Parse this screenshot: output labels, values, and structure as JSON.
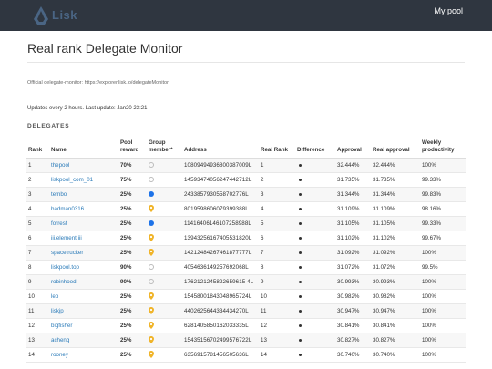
{
  "header": {
    "logo_text": "Lisk",
    "my_pool_label": "My pool"
  },
  "page": {
    "title": "Real rank Delegate Monitor",
    "official_text": "Official delegate-monitor: https://explorer.lisk.io/delegateMonitor",
    "updates_text": "Updates every 2 hours. Last update: Jan20 23:21",
    "section_label": "DELEGATES"
  },
  "table": {
    "headers": {
      "rank": "Rank",
      "name": "Name",
      "pool_reward": "Pool reward",
      "group_member": "Group member*",
      "address": "Address",
      "real_rank": "Real Rank",
      "difference": "Difference",
      "approval": "Approval",
      "real_approval": "Real approval",
      "weekly": "Weekly productivity"
    },
    "rows": [
      {
        "rank": "1",
        "name": "thepool",
        "reward": "70%",
        "member": "empty",
        "address": "10809494936800387009L",
        "real_rank": "1",
        "approval": "32.444%",
        "real_approval": "32.444%",
        "weekly": "100%"
      },
      {
        "rank": "2",
        "name": "liskpool_com_01",
        "reward": "75%",
        "member": "empty",
        "address": "14593474056247442712L",
        "real_rank": "2",
        "approval": "31.735%",
        "real_approval": "31.735%",
        "weekly": "99.33%"
      },
      {
        "rank": "3",
        "name": "tembo",
        "reward": "25%",
        "member": "blue",
        "address": "2433857930558702776L",
        "real_rank": "3",
        "approval": "31.344%",
        "real_approval": "31.344%",
        "weekly": "99.83%"
      },
      {
        "rank": "4",
        "name": "badman0316",
        "reward": "25%",
        "member": "pin",
        "address": "8019598606079399388L",
        "real_rank": "4",
        "approval": "31.109%",
        "real_approval": "31.109%",
        "weekly": "98.16%"
      },
      {
        "rank": "5",
        "name": "forrest",
        "reward": "25%",
        "member": "blue",
        "address": "11416406146107258988L",
        "real_rank": "5",
        "approval": "31.105%",
        "real_approval": "31.105%",
        "weekly": "99.33%"
      },
      {
        "rank": "6",
        "name": "iii.element.iii",
        "reward": "25%",
        "member": "pin",
        "address": "13943256167405531820L",
        "real_rank": "6",
        "approval": "31.102%",
        "real_approval": "31.102%",
        "weekly": "99.67%"
      },
      {
        "rank": "7",
        "name": "spacetrucker",
        "reward": "25%",
        "member": "pin",
        "address": "14212484267461877777L",
        "real_rank": "7",
        "approval": "31.092%",
        "real_approval": "31.092%",
        "weekly": "100%"
      },
      {
        "rank": "8",
        "name": "liskpool.top",
        "reward": "90%",
        "member": "empty",
        "address": "4054636149257692068L",
        "real_rank": "8",
        "approval": "31.072%",
        "real_approval": "31.072%",
        "weekly": "99.5%"
      },
      {
        "rank": "9",
        "name": "robinhood",
        "reward": "90%",
        "member": "empty",
        "address": "1762121245822659615 4L",
        "real_rank": "9",
        "approval": "30.993%",
        "real_approval": "30.993%",
        "weekly": "100%"
      },
      {
        "rank": "10",
        "name": "leo",
        "reward": "25%",
        "member": "pin",
        "address": "15458001843048965724L",
        "real_rank": "10",
        "approval": "30.982%",
        "real_approval": "30.982%",
        "weekly": "100%"
      },
      {
        "rank": "11",
        "name": "liskjp",
        "reward": "25%",
        "member": "pin",
        "address": "4402625644334434270L",
        "real_rank": "11",
        "approval": "30.947%",
        "real_approval": "30.947%",
        "weekly": "100%"
      },
      {
        "rank": "12",
        "name": "bigfisher",
        "reward": "25%",
        "member": "pin",
        "address": "6281405850162033335L",
        "real_rank": "12",
        "approval": "30.841%",
        "real_approval": "30.841%",
        "weekly": "100%"
      },
      {
        "rank": "13",
        "name": "acheng",
        "reward": "25%",
        "member": "pin",
        "address": "15435156702499576722L",
        "real_rank": "13",
        "approval": "30.827%",
        "real_approval": "30.827%",
        "weekly": "100%"
      },
      {
        "rank": "14",
        "name": "rooney",
        "reward": "25%",
        "member": "pin",
        "address": "6356915781456505636L",
        "real_rank": "14",
        "approval": "30.740%",
        "real_approval": "30.740%",
        "weekly": "100%"
      }
    ]
  },
  "colors": {
    "topbar": "#2f3640",
    "link": "#2b7bb9",
    "reward": "#2e8b3d",
    "member_blue": "#1e73e8",
    "member_pin": "#f0b429"
  },
  "icons": {
    "logo": "lisk-logo-icon",
    "member_empty": "empty-circle-icon",
    "member_blue": "blue-dot-icon",
    "member_pin": "map-pin-icon",
    "difference": "dot-icon"
  }
}
